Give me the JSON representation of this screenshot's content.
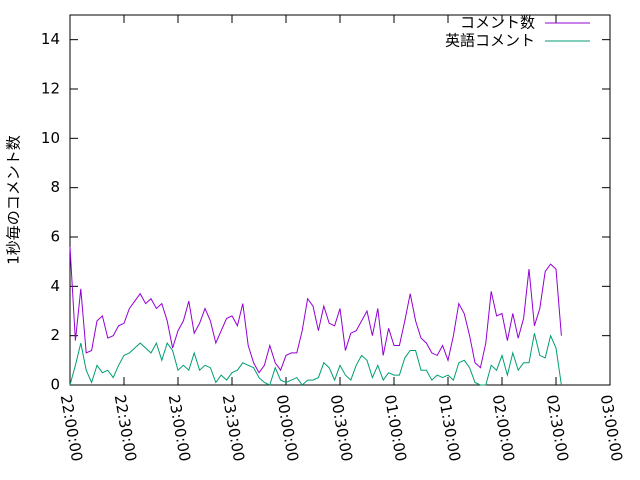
{
  "chart_data": {
    "type": "line",
    "ylabel": "1秒毎のコメント数",
    "x": [
      "22:00:00",
      "22:03:00",
      "22:06:00",
      "22:09:00",
      "22:12:00",
      "22:15:00",
      "22:18:00",
      "22:21:00",
      "22:24:00",
      "22:27:00",
      "22:30:00",
      "22:33:00",
      "22:36:00",
      "22:39:00",
      "22:42:00",
      "22:45:00",
      "22:48:00",
      "22:51:00",
      "22:54:00",
      "22:57:00",
      "23:00:00",
      "23:03:00",
      "23:06:00",
      "23:09:00",
      "23:12:00",
      "23:15:00",
      "23:18:00",
      "23:21:00",
      "23:24:00",
      "23:27:00",
      "23:30:00",
      "23:33:00",
      "23:36:00",
      "23:39:00",
      "23:42:00",
      "23:45:00",
      "23:48:00",
      "23:51:00",
      "23:54:00",
      "23:57:00",
      "00:00:00",
      "00:03:00",
      "00:06:00",
      "00:09:00",
      "00:12:00",
      "00:15:00",
      "00:18:00",
      "00:21:00",
      "00:24:00",
      "00:27:00",
      "00:30:00",
      "00:33:00",
      "00:36:00",
      "00:39:00",
      "00:42:00",
      "00:45:00",
      "00:48:00",
      "00:51:00",
      "00:54:00",
      "00:57:00",
      "01:00:00",
      "01:03:00",
      "01:06:00",
      "01:09:00",
      "01:12:00",
      "01:15:00",
      "01:18:00",
      "01:21:00",
      "01:24:00",
      "01:27:00",
      "01:30:00",
      "01:33:00",
      "01:36:00",
      "01:39:00",
      "01:42:00",
      "01:45:00",
      "01:48:00",
      "01:51:00",
      "01:54:00",
      "01:57:00",
      "02:00:00",
      "02:03:00",
      "02:06:00",
      "02:09:00",
      "02:12:00",
      "02:15:00",
      "02:18:00",
      "02:21:00",
      "02:24:00",
      "02:27:00",
      "02:30:00",
      "02:33:00"
    ],
    "series": [
      {
        "name": "コメント数",
        "color": "#9400d3",
        "values": [
          5.6,
          1.8,
          3.9,
          1.3,
          1.4,
          2.6,
          2.8,
          1.9,
          2.0,
          2.4,
          2.5,
          3.1,
          3.4,
          3.7,
          3.3,
          3.5,
          3.1,
          3.3,
          2.6,
          1.5,
          2.2,
          2.6,
          3.4,
          2.1,
          2.5,
          3.1,
          2.6,
          1.7,
          2.2,
          2.7,
          2.8,
          2.4,
          3.3,
          1.6,
          0.9,
          0.5,
          0.8,
          1.6,
          0.9,
          0.6,
          1.2,
          1.3,
          1.3,
          2.2,
          3.5,
          3.2,
          2.2,
          3.2,
          2.5,
          2.4,
          3.1,
          1.4,
          2.1,
          2.2,
          2.6,
          3.0,
          2.0,
          3.1,
          1.2,
          2.3,
          1.6,
          1.6,
          2.6,
          3.7,
          2.6,
          1.9,
          1.7,
          1.3,
          1.2,
          1.6,
          1.0,
          2.0,
          3.3,
          2.9,
          2.0,
          0.9,
          0.7,
          1.7,
          3.8,
          2.8,
          2.9,
          1.8,
          2.9,
          1.9,
          2.7,
          4.7,
          2.4,
          3.1,
          4.6,
          4.9,
          4.7,
          2.0
        ]
      },
      {
        "name": "英語コメント",
        "color": "#009e73",
        "values": [
          0,
          0.8,
          1.7,
          0.6,
          0.1,
          0.8,
          0.5,
          0.6,
          0.3,
          0.8,
          1.2,
          1.3,
          1.5,
          1.7,
          1.5,
          1.3,
          1.7,
          1.0,
          1.7,
          1.4,
          0.6,
          0.8,
          0.6,
          1.3,
          0.6,
          0.8,
          0.7,
          0.1,
          0.4,
          0.2,
          0.5,
          0.6,
          0.9,
          0.8,
          0.7,
          0.3,
          0.1,
          0,
          0.7,
          0.2,
          0.1,
          0.2,
          0.3,
          0,
          0.2,
          0.2,
          0.3,
          0.9,
          0.7,
          0.2,
          0.8,
          0.4,
          0.2,
          0.8,
          1.2,
          1.0,
          0.3,
          0.8,
          0.2,
          0.5,
          0.4,
          0.4,
          1.1,
          1.4,
          1.4,
          0.6,
          0.6,
          0.2,
          0.4,
          0.3,
          0.4,
          0.2,
          0.9,
          1.0,
          0.7,
          0.1,
          0,
          0,
          0.8,
          0.6,
          1.2,
          0.4,
          1.3,
          0.6,
          0.9,
          0.9,
          2.1,
          1.2,
          1.1,
          2.0,
          1.5,
          0
        ]
      }
    ],
    "xlim": [
      "22:00:00",
      "03:00:00"
    ],
    "xticks": [
      "22:00:00",
      "22:30:00",
      "23:00:00",
      "23:30:00",
      "00:00:00",
      "00:30:00",
      "01:00:00",
      "01:30:00",
      "02:00:00",
      "02:30:00",
      "03:00:00"
    ],
    "ylim": [
      0,
      15
    ],
    "yticks": [
      0,
      2,
      4,
      6,
      8,
      10,
      12,
      14
    ],
    "legend": "top-right"
  }
}
